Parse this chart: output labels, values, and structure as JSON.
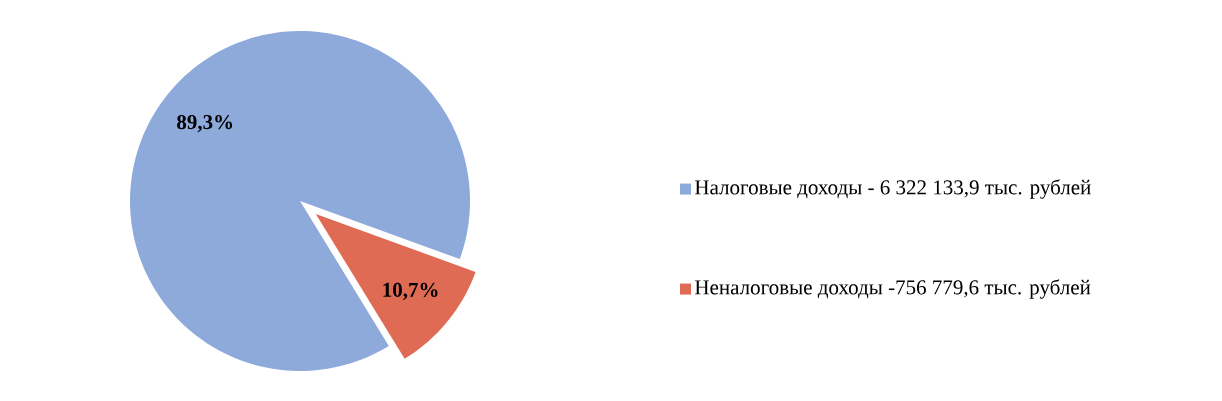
{
  "chart_data": {
    "type": "pie",
    "categories": [
      "Налоговые доходы - 6 322 133,9 тыс. рублей",
      "Неналоговые доходы -756 779,6 тыс. рублей"
    ],
    "values": [
      89.3,
      10.7
    ],
    "colors": [
      "#8eaadb",
      "#e06b55"
    ],
    "value_labels": [
      "89,3%",
      "10,7%"
    ],
    "legend": "right"
  }
}
